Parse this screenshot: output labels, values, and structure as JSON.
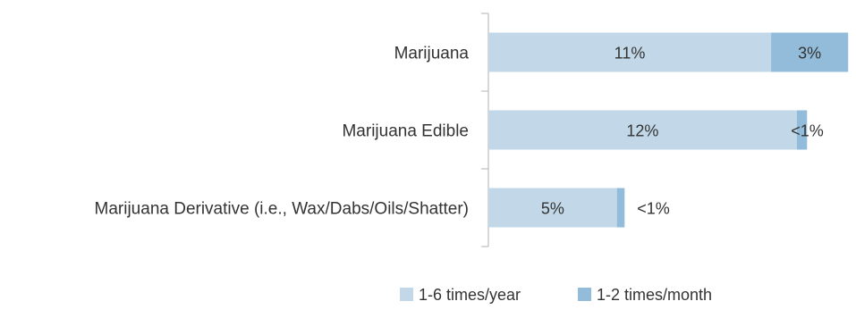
{
  "chart_data": {
    "type": "bar",
    "orientation": "horizontal",
    "stacked": true,
    "categories": [
      "Marijuana",
      "Marijuana Edible",
      "Marijuana Derivative (i.e., Wax/Dabs/Oils/Shatter)"
    ],
    "series": [
      {
        "name": "1-6 times/year",
        "color": "#c2d8e8",
        "values": [
          11,
          12,
          5
        ],
        "labels": [
          "11%",
          "12%",
          "5%"
        ]
      },
      {
        "name": "1-2 times/month",
        "color": "#93bcda",
        "values": [
          3,
          0.4,
          0.3
        ],
        "labels": [
          "3%",
          "<1%",
          "<1%"
        ]
      }
    ],
    "xlim": [
      0,
      14.2
    ],
    "grid": false,
    "legend": "bottom"
  }
}
